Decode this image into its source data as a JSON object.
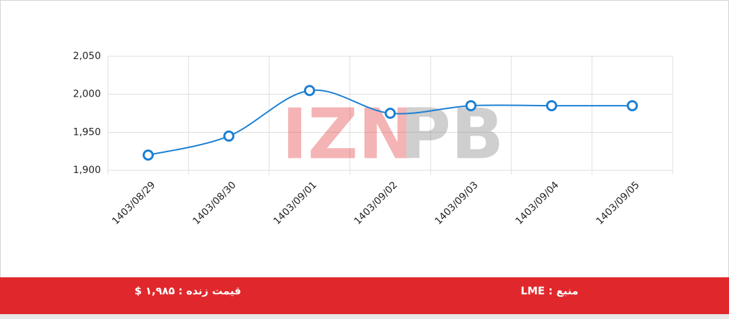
{
  "chart_data": {
    "type": "line",
    "categories": [
      "1403/08/29",
      "1403/08/30",
      "1403/09/01",
      "1403/09/02",
      "1403/09/03",
      "1403/09/04",
      "1403/09/05"
    ],
    "series": [
      {
        "color": "#1a7fd4",
        "values": [
          1920,
          1945,
          2005,
          1975,
          1985,
          1985,
          1985
        ]
      }
    ],
    "ylim": [
      1900,
      2050
    ],
    "yticks": [
      {
        "value": 1900,
        "label": "1,900"
      },
      {
        "value": 1950,
        "label": "1,950"
      },
      {
        "value": 2000,
        "label": "2,000"
      },
      {
        "value": 2050,
        "label": "2,050"
      }
    ],
    "grid": true,
    "smooth": true
  },
  "watermark": {
    "red": "IZN",
    "gray": "PB"
  },
  "footer": {
    "price": "قیمت زنده : ۱,۹۸۵ $",
    "source": "منبع : LME"
  }
}
